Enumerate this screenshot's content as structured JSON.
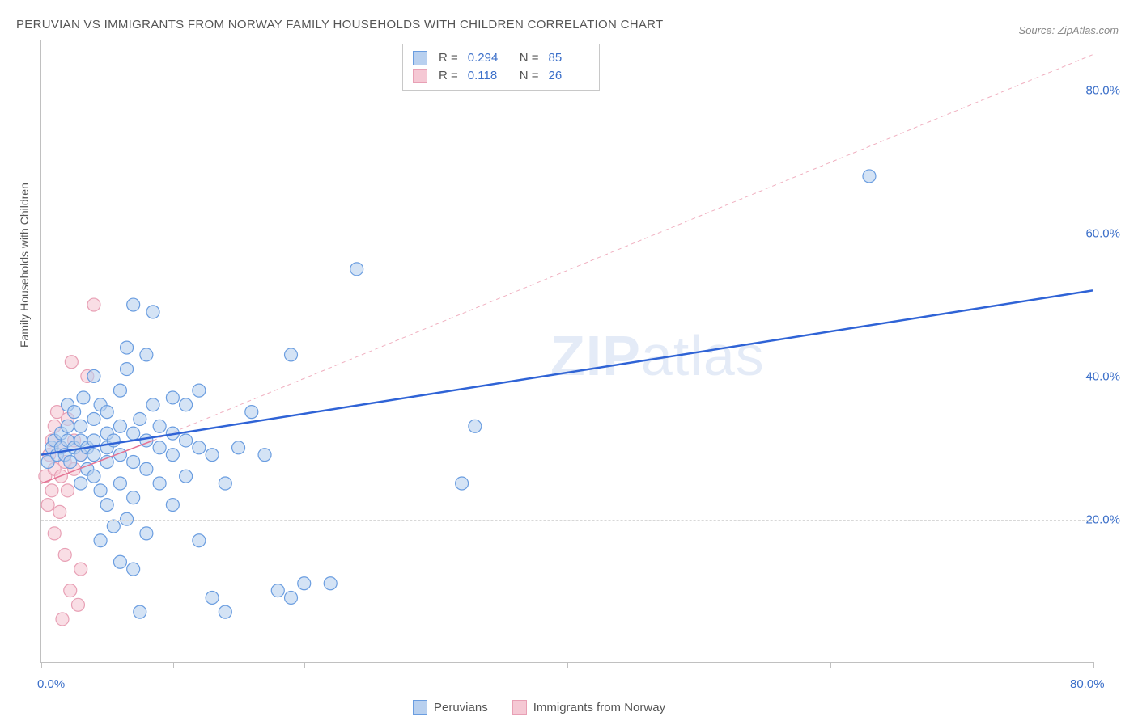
{
  "title": "PERUVIAN VS IMMIGRANTS FROM NORWAY FAMILY HOUSEHOLDS WITH CHILDREN CORRELATION CHART",
  "source": "Source: ZipAtlas.com",
  "watermark_bold": "ZIP",
  "watermark_rest": "atlas",
  "y_axis_label": "Family Households with Children",
  "chart": {
    "type": "scatter",
    "xlim": [
      0,
      80
    ],
    "ylim": [
      0,
      87
    ],
    "x_ticks": [
      0,
      10,
      20,
      40,
      60,
      80
    ],
    "x_tick_labels": {
      "0": "0.0%",
      "80": "80.0%"
    },
    "y_ticks": [
      20,
      40,
      60,
      80
    ],
    "y_tick_labels": {
      "20": "20.0%",
      "40": "40.0%",
      "60": "60.0%",
      "80": "80.0%"
    },
    "grid_color": "#d8d8d8",
    "axis_color": "#c0c0c0",
    "background_color": "#ffffff",
    "marker_radius": 8,
    "marker_stroke_width": 1.2,
    "series": [
      {
        "name": "Peruvians",
        "color_fill": "#b8d0ef",
        "color_stroke": "#6a9de0",
        "r_value": "0.294",
        "n_value": "85",
        "trend": {
          "x1": 0,
          "y1": 29,
          "x2": 80,
          "y2": 52,
          "width": 2.5,
          "dash": "none",
          "color": "#2f63d6"
        },
        "points": [
          [
            0.5,
            28
          ],
          [
            0.8,
            30
          ],
          [
            1,
            31
          ],
          [
            1.2,
            29
          ],
          [
            1.5,
            30
          ],
          [
            1.5,
            32
          ],
          [
            1.8,
            29
          ],
          [
            2,
            31
          ],
          [
            2,
            33
          ],
          [
            2,
            36
          ],
          [
            2.2,
            28
          ],
          [
            2.5,
            30
          ],
          [
            2.5,
            35
          ],
          [
            3,
            25
          ],
          [
            3,
            29
          ],
          [
            3,
            31
          ],
          [
            3,
            33
          ],
          [
            3.2,
            37
          ],
          [
            3.5,
            27
          ],
          [
            3.5,
            30
          ],
          [
            4,
            26
          ],
          [
            4,
            29
          ],
          [
            4,
            31
          ],
          [
            4,
            34
          ],
          [
            4,
            40
          ],
          [
            4.5,
            17
          ],
          [
            4.5,
            24
          ],
          [
            4.5,
            36
          ],
          [
            5,
            22
          ],
          [
            5,
            28
          ],
          [
            5,
            30
          ],
          [
            5,
            32
          ],
          [
            5,
            35
          ],
          [
            5.5,
            19
          ],
          [
            5.5,
            31
          ],
          [
            6,
            14
          ],
          [
            6,
            25
          ],
          [
            6,
            29
          ],
          [
            6,
            33
          ],
          [
            6,
            38
          ],
          [
            6.5,
            20
          ],
          [
            6.5,
            41
          ],
          [
            7,
            23
          ],
          [
            7,
            28
          ],
          [
            7,
            32
          ],
          [
            7,
            50
          ],
          [
            7.5,
            7
          ],
          [
            7.5,
            34
          ],
          [
            8,
            18
          ],
          [
            8,
            27
          ],
          [
            8,
            31
          ],
          [
            8,
            43
          ],
          [
            8.5,
            36
          ],
          [
            8.5,
            49
          ],
          [
            9,
            25
          ],
          [
            9,
            30
          ],
          [
            9,
            33
          ],
          [
            10,
            22
          ],
          [
            10,
            29
          ],
          [
            10,
            32
          ],
          [
            10,
            37
          ],
          [
            11,
            26
          ],
          [
            11,
            31
          ],
          [
            11,
            36
          ],
          [
            12,
            17
          ],
          [
            12,
            30
          ],
          [
            12,
            38
          ],
          [
            13,
            9
          ],
          [
            13,
            29
          ],
          [
            14,
            7
          ],
          [
            14,
            25
          ],
          [
            15,
            30
          ],
          [
            16,
            35
          ],
          [
            17,
            29
          ],
          [
            18,
            10
          ],
          [
            19,
            9
          ],
          [
            19,
            43
          ],
          [
            20,
            11
          ],
          [
            24,
            55
          ],
          [
            32,
            25
          ],
          [
            33,
            33
          ],
          [
            22,
            11
          ],
          [
            63,
            68
          ],
          [
            7,
            13
          ],
          [
            6.5,
            44
          ]
        ]
      },
      {
        "name": "Immigrants from Norway",
        "color_fill": "#f5c8d4",
        "color_stroke": "#e8a0b5",
        "r_value": "0.118",
        "n_value": "26",
        "trend": {
          "x1": 0,
          "y1": 25,
          "x2": 8.5,
          "y2": 31,
          "width": 1.5,
          "dash": "none",
          "color": "#e57394"
        },
        "trend_extrapolate": {
          "x1": 8.5,
          "y1": 31,
          "x2": 80,
          "y2": 85,
          "width": 1,
          "dash": "5,4",
          "color": "#f0b0c0"
        },
        "points": [
          [
            0.3,
            26
          ],
          [
            0.5,
            22
          ],
          [
            0.6,
            29
          ],
          [
            0.8,
            24
          ],
          [
            0.8,
            31
          ],
          [
            1,
            18
          ],
          [
            1,
            27
          ],
          [
            1,
            33
          ],
          [
            1.2,
            35
          ],
          [
            1.4,
            21
          ],
          [
            1.5,
            26
          ],
          [
            1.5,
            30
          ],
          [
            1.8,
            15
          ],
          [
            1.8,
            28
          ],
          [
            2,
            24
          ],
          [
            2,
            34
          ],
          [
            2.2,
            10
          ],
          [
            2.3,
            42
          ],
          [
            2.5,
            27
          ],
          [
            2.5,
            31
          ],
          [
            2.8,
            8
          ],
          [
            3,
            13
          ],
          [
            3,
            29
          ],
          [
            3.5,
            40
          ],
          [
            4,
            50
          ],
          [
            1.6,
            6
          ]
        ]
      }
    ]
  },
  "legend_top": {
    "r_label": "R =",
    "n_label": "N ="
  },
  "legend_bottom_labels": [
    "Peruvians",
    "Immigrants from Norway"
  ]
}
